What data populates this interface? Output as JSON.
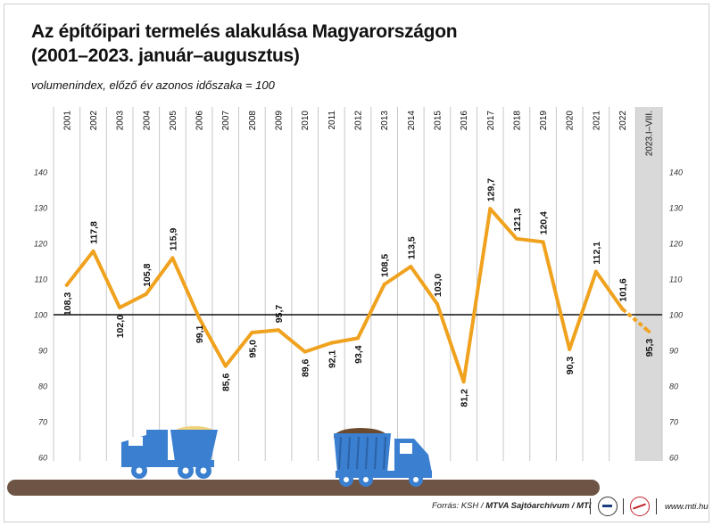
{
  "header": {
    "title_line1": "Az építőipari termelés alakulása Magyarországon",
    "title_line2": "(2001–2023. január–augusztus)",
    "subtitle": "volumenindex, előző év azonos időszaka = 100"
  },
  "chart_data": {
    "type": "line",
    "x": [
      "2001",
      "2002",
      "2003",
      "2004",
      "2005",
      "2006",
      "2007",
      "2008",
      "2009",
      "2010",
      "2011",
      "2012",
      "2013",
      "2014",
      "2015",
      "2016",
      "2017",
      "2018",
      "2019",
      "2020",
      "2021",
      "2022",
      "2023.I–VIII."
    ],
    "series": [
      {
        "values": [
          108.3,
          117.8,
          102.0,
          105.8,
          115.9,
          99.1,
          85.6,
          95.0,
          95.7,
          89.6,
          92.1,
          93.4,
          108.5,
          113.5,
          103.0,
          81.2,
          129.7,
          121.3,
          120.4,
          90.3,
          112.1,
          101.6,
          95.3
        ]
      }
    ],
    "labels": [
      "108,3",
      "117,8",
      "102,0",
      "105,8",
      "115,9",
      "99,1",
      "85,6",
      "95,0",
      "95,7",
      "89,6",
      "92,1",
      "93,4",
      "108,5",
      "113,5",
      "103,0",
      "81,2",
      "129,7",
      "121,3",
      "120,4",
      "90,3",
      "112,1",
      "101,6",
      "95,3"
    ],
    "y_ticks": [
      "60",
      "70",
      "80",
      "90",
      "100",
      "110",
      "120",
      "130",
      "140"
    ],
    "ylim": [
      60,
      140
    ],
    "reference_line": 100,
    "last_point_dashed": true,
    "grid": "vertical",
    "colors": {
      "line": "#f0a21e",
      "highlight_column": "#d9d9d9",
      "grid": "#c8c8c8",
      "reference": "#111111"
    }
  },
  "footer": {
    "source_prefix": "Forrás: KSH / ",
    "source_bold": "MTVA Sajtóarchívum / MTI",
    "site": "www.mti.hu"
  },
  "decoration": {
    "icons": [
      "dump-truck-icon",
      "dump-truck-icon"
    ],
    "colors": {
      "truck": "#3a7fd0",
      "sand": "#f0d27a",
      "soil": "#6b4a2e",
      "ground": "#6e5444"
    }
  }
}
